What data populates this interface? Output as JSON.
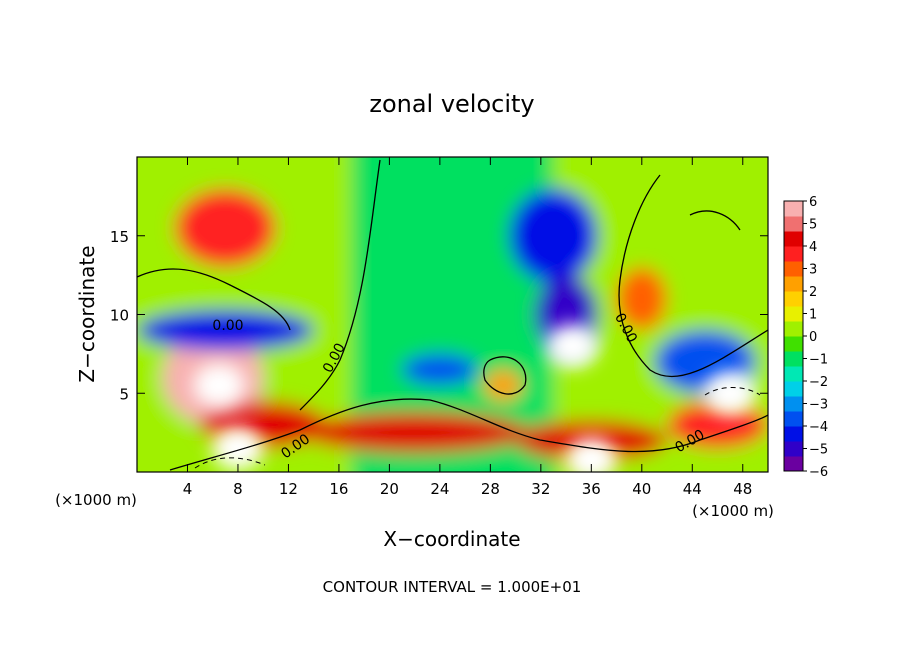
{
  "chart_data": {
    "type": "heatmap",
    "title": "zonal velocity",
    "xlabel": "X−coordinate",
    "ylabel": "Z−coordinate",
    "x_unit_left": "(×1000 m)",
    "x_unit_right": "(×1000 m)",
    "footer": "CONTOUR INTERVAL = 1.000E+01",
    "x_ticks": [
      "4",
      "8",
      "12",
      "16",
      "20",
      "24",
      "28",
      "32",
      "36",
      "40",
      "44",
      "48"
    ],
    "y_ticks": [
      "5",
      "10",
      "15"
    ],
    "xlim": [
      0,
      50
    ],
    "ylim": [
      0,
      20
    ],
    "contour_labels": [
      "0.00",
      "0.00",
      "0.00",
      "0.00",
      "0.00"
    ],
    "colorbar": {
      "ticks": [
        "6",
        "5",
        "4",
        "3",
        "2",
        "1",
        "0",
        "−1",
        "−2",
        "−3",
        "−4",
        "−5",
        "−6"
      ],
      "range": [
        -6,
        6
      ],
      "colors": [
        "#6a00a0",
        "#3000c8",
        "#0010e6",
        "#0050f0",
        "#0090f0",
        "#00d0e8",
        "#00e8b4",
        "#00e060",
        "#40e000",
        "#a0f000",
        "#e8f000",
        "#ffd000",
        "#ffa000",
        "#ff6000",
        "#ff2020",
        "#e00000",
        "#f07070",
        "#f8b0b0"
      ]
    },
    "features": [
      {
        "desc": "upper-left warm",
        "x": 7,
        "z": 15.5,
        "value": 3.5,
        "sx": 4,
        "sz": 2.5
      },
      {
        "desc": "left low warm band",
        "x": 6,
        "z": 6,
        "value": 5.5,
        "sx": 4,
        "sz": 3
      },
      {
        "desc": "left lower warm",
        "x": 10,
        "z": 3,
        "value": 4.5,
        "sx": 5,
        "sz": 1.5
      },
      {
        "desc": "cold band under jet",
        "x": 7,
        "z": 9,
        "value": -4.5,
        "sx": 7,
        "sz": 1.3
      },
      {
        "desc": "upper center cold",
        "x": 33,
        "z": 15,
        "value": -4.5,
        "sx": 3.5,
        "sz": 3
      },
      {
        "desc": "mid cold",
        "x": 34,
        "z": 10,
        "value": -5,
        "sx": 2.5,
        "sz": 2.5
      },
      {
        "desc": "right warm",
        "x": 40,
        "z": 11,
        "value": 3,
        "sx": 2,
        "sz": 2
      },
      {
        "desc": "bottom warm band",
        "x": 22,
        "z": 2.5,
        "value": 4,
        "sx": 9,
        "sz": 1.3
      },
      {
        "desc": "bottom warm right",
        "x": 36,
        "z": 2,
        "value": 4.5,
        "sx": 6,
        "sz": 1.3
      },
      {
        "desc": "right cold",
        "x": 45,
        "z": 7,
        "value": -4,
        "sx": 4,
        "sz": 2
      },
      {
        "desc": "mid-low cold",
        "x": 24,
        "z": 6.5,
        "value": -3.5,
        "sx": 3,
        "sz": 1
      },
      {
        "desc": "right low warm",
        "x": 46,
        "z": 3,
        "value": 3.5,
        "sx": 4,
        "sz": 1.5
      },
      {
        "desc": "small warm blob",
        "x": 29,
        "z": 5.5,
        "value": 2.5,
        "sx": 1.5,
        "sz": 1
      }
    ],
    "white_regions": [
      {
        "desc": "left lobe",
        "x": 6.5,
        "z": 5.5
      },
      {
        "desc": "center-right lobe",
        "x": 34.5,
        "z": 8
      },
      {
        "desc": "right lobe",
        "x": 47,
        "z": 5
      },
      {
        "desc": "bottom-left",
        "x": 8,
        "z": 1.5
      },
      {
        "desc": "bottom-center",
        "x": 36,
        "z": 0.8
      }
    ]
  }
}
